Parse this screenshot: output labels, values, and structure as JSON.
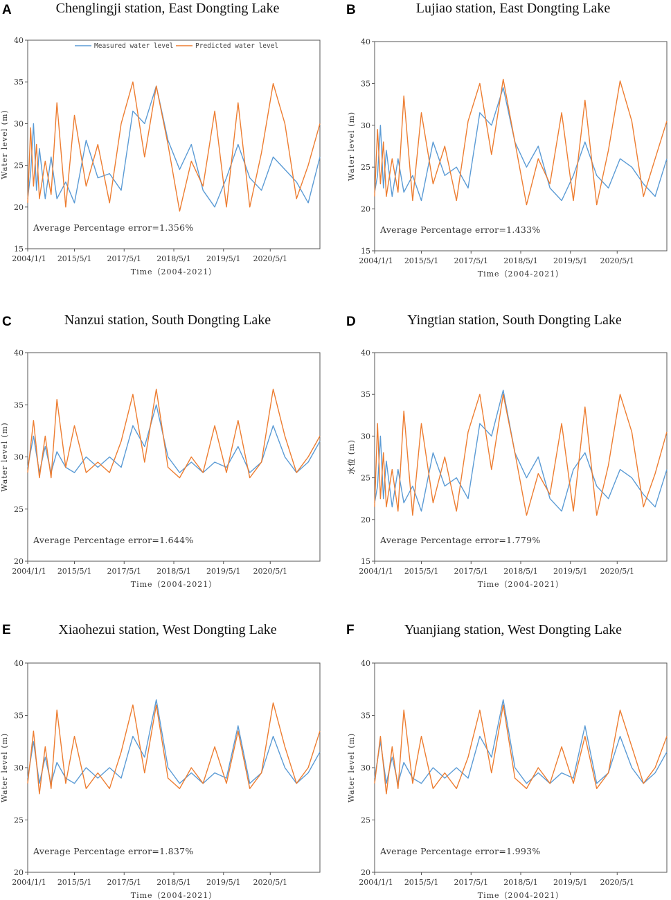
{
  "figure": {
    "legend": {
      "measured": "Measured water level",
      "predicted": "Predicted water level"
    }
  },
  "colors": {
    "measured": "#5b9bd5",
    "predicted": "#ed7d31",
    "axis": "#555555"
  },
  "chart_data": [
    {
      "type": "line",
      "letter": "A",
      "title": "Chenglingji station, East Dongting Lake",
      "ylabel": "Water level (m)",
      "xlabel": "Time（2004-2021）",
      "ylim": [
        15,
        40
      ],
      "yticks": [
        "15",
        "20",
        "25",
        "30",
        "35",
        "40"
      ],
      "xticks": [
        "2004/1/1",
        "2015/5/1",
        "2017/5/1",
        "2018/5/1",
        "2019/5/1",
        "2020/5/1"
      ],
      "annotation": "Average Percentage error=1.356%",
      "show_legend": true,
      "series": [
        {
          "name": "Measured water level",
          "x": [
            0,
            1,
            2,
            3,
            4,
            6,
            8,
            10,
            13,
            16,
            20,
            24,
            28,
            32,
            36,
            40,
            44,
            48,
            52,
            56,
            60,
            64,
            68,
            72,
            76,
            80,
            84,
            88,
            92,
            96,
            100
          ],
          "values": [
            21,
            24,
            30,
            22,
            27,
            21,
            26,
            21,
            23,
            20.5,
            28,
            23.5,
            24,
            22,
            31.5,
            30,
            34.5,
            28,
            24.5,
            27.5,
            22,
            20,
            23.5,
            27.5,
            23.5,
            22,
            26,
            24.5,
            23,
            20.5,
            26
          ]
        },
        {
          "name": "Predicted water level",
          "x": [
            0,
            1,
            2,
            3,
            4,
            6,
            8,
            10,
            13,
            16,
            20,
            24,
            28,
            32,
            36,
            40,
            44,
            48,
            52,
            56,
            60,
            64,
            68,
            72,
            76,
            80,
            84,
            88,
            92,
            96,
            100
          ],
          "values": [
            20.5,
            29.5,
            22.5,
            27.5,
            21,
            25.5,
            21.5,
            32.5,
            20,
            31,
            22.5,
            27.5,
            20.5,
            30,
            35,
            26,
            34.5,
            27.5,
            19.5,
            25.5,
            22.5,
            31.5,
            20,
            32.5,
            20,
            26.5,
            34.8,
            30,
            21,
            25,
            30
          ]
        }
      ]
    },
    {
      "type": "line",
      "letter": "B",
      "title": "Lujiao station, East Dongting Lake",
      "ylabel": "Water level (m)",
      "xlabel": "Time（2004-2021）",
      "ylim": [
        15,
        40
      ],
      "yticks": [
        "15",
        "20",
        "25",
        "30",
        "35",
        "40"
      ],
      "xticks": [
        "2004/1/1",
        "2015/5/1",
        "2017/5/1",
        "2018/5/1",
        "2019/5/1",
        "2020/5/1"
      ],
      "annotation": "Average Percentage error=1.433%",
      "show_legend": false,
      "series": [
        {
          "name": "Measured water level",
          "x": [
            0,
            1,
            2,
            3,
            4,
            6,
            8,
            10,
            13,
            16,
            20,
            24,
            28,
            32,
            36,
            40,
            44,
            48,
            52,
            56,
            60,
            64,
            68,
            72,
            76,
            80,
            84,
            88,
            92,
            96,
            100
          ],
          "values": [
            22,
            24,
            30,
            22.5,
            27,
            21.5,
            26,
            22,
            24,
            21,
            28,
            24,
            25,
            22.5,
            31.5,
            30,
            34.5,
            28,
            25,
            27.5,
            22.5,
            21,
            24,
            28,
            24,
            22.5,
            26,
            25,
            23,
            21.5,
            26
          ]
        },
        {
          "name": "Predicted water level",
          "x": [
            0,
            1,
            2,
            3,
            4,
            6,
            8,
            10,
            13,
            16,
            20,
            24,
            28,
            32,
            36,
            40,
            44,
            48,
            52,
            56,
            60,
            64,
            68,
            72,
            76,
            80,
            84,
            88,
            92,
            96,
            100
          ],
          "values": [
            21.5,
            29.5,
            23,
            28,
            21.5,
            26,
            22,
            33.5,
            21,
            31.5,
            23,
            27.5,
            21,
            30.5,
            35,
            26.5,
            35.5,
            28,
            20.5,
            26,
            23,
            31.5,
            21,
            33,
            20.5,
            27,
            35.3,
            30.5,
            21.5,
            26,
            30.5
          ]
        }
      ]
    },
    {
      "type": "line",
      "letter": "C",
      "title": "Nanzui station, South Dongting Lake",
      "ylabel": "Water level (m)",
      "xlabel": "Time（2004-2021）",
      "ylim": [
        20,
        40
      ],
      "yticks": [
        "20",
        "25",
        "30",
        "35",
        "40"
      ],
      "xticks": [
        "2004/1/1",
        "2015/5/1",
        "2017/5/1",
        "2018/5/1",
        "2019/5/1",
        "2020/5/1"
      ],
      "annotation": "Average Percentage error=1.644%",
      "show_legend": false,
      "series": [
        {
          "name": "Measured water level",
          "x": [
            0,
            2,
            4,
            6,
            8,
            10,
            13,
            16,
            20,
            24,
            28,
            32,
            36,
            40,
            44,
            48,
            52,
            56,
            60,
            64,
            68,
            72,
            76,
            80,
            84,
            88,
            92,
            96,
            100
          ],
          "values": [
            29,
            32,
            28.5,
            31,
            28.5,
            30.5,
            29,
            28.5,
            30,
            29,
            30,
            29,
            33,
            31,
            35,
            30,
            28.5,
            29.5,
            28.5,
            29.5,
            29,
            31,
            28.5,
            29.5,
            33,
            30,
            28.5,
            29.5,
            31.5
          ]
        },
        {
          "name": "Predicted water level",
          "x": [
            0,
            2,
            4,
            6,
            8,
            10,
            13,
            16,
            20,
            24,
            28,
            32,
            36,
            40,
            44,
            48,
            52,
            56,
            60,
            64,
            68,
            72,
            76,
            80,
            84,
            88,
            92,
            96,
            100
          ],
          "values": [
            28.5,
            33.5,
            28,
            32,
            28,
            35.5,
            29,
            33,
            28.5,
            29.5,
            28.5,
            31.5,
            36,
            29.5,
            36.5,
            29,
            28,
            30,
            28.5,
            33,
            28.5,
            33.5,
            28,
            29.5,
            36.5,
            32,
            28.5,
            30,
            32
          ]
        }
      ]
    },
    {
      "type": "line",
      "letter": "D",
      "title": "Yingtian station, South Dongting Lake",
      "ylabel": "水位 (m)",
      "xlabel": "Time（2004-2021）",
      "ylim": [
        15,
        40
      ],
      "yticks": [
        "15",
        "20",
        "25",
        "30",
        "35",
        "40"
      ],
      "xticks": [
        "2004/1/1",
        "2015/5/1",
        "2017/5/1",
        "2018/5/1",
        "2019/5/1",
        "2020/5/1"
      ],
      "annotation": "Average Percentage error=1.779%",
      "show_legend": false,
      "series": [
        {
          "name": "Measured water level",
          "x": [
            0,
            1,
            2,
            3,
            4,
            6,
            8,
            10,
            13,
            16,
            20,
            24,
            28,
            32,
            36,
            40,
            44,
            48,
            52,
            56,
            60,
            64,
            68,
            72,
            76,
            80,
            84,
            88,
            92,
            96,
            100
          ],
          "values": [
            22,
            24,
            30,
            22.5,
            27,
            21.5,
            26,
            22,
            24,
            21,
            28,
            24,
            25,
            22.5,
            31.5,
            30,
            35.5,
            28,
            25,
            27.5,
            22.5,
            21,
            26,
            28,
            24,
            22.5,
            26,
            25,
            23,
            21.5,
            26
          ]
        },
        {
          "name": "Predicted water level",
          "x": [
            0,
            1,
            2,
            3,
            4,
            6,
            8,
            10,
            13,
            16,
            20,
            24,
            28,
            32,
            36,
            40,
            44,
            48,
            52,
            56,
            60,
            64,
            68,
            72,
            76,
            80,
            84,
            88,
            92,
            96,
            100
          ],
          "values": [
            21.5,
            31.5,
            22.5,
            28,
            21.5,
            26,
            21,
            33,
            20.5,
            31.5,
            22,
            27.5,
            21,
            30.5,
            35,
            26,
            35,
            28,
            20.5,
            25.5,
            23,
            31.5,
            21,
            33.5,
            20.5,
            26.5,
            35,
            30.5,
            21.5,
            25.5,
            30.5
          ]
        }
      ]
    },
    {
      "type": "line",
      "letter": "E",
      "title": "Xiaohezui station, West Dongting Lake",
      "ylabel": "Water level (m)",
      "xlabel": "Time（2004-2021）",
      "ylim": [
        20,
        40
      ],
      "yticks": [
        "20",
        "25",
        "30",
        "35",
        "40"
      ],
      "xticks": [
        "2004/1/1",
        "2015/5/1",
        "2017/5/1",
        "2018/5/1",
        "2019/5/1",
        "2020/5/1"
      ],
      "annotation": "Average Percentage error=1.837%",
      "show_legend": false,
      "series": [
        {
          "name": "Measured water level",
          "x": [
            0,
            2,
            4,
            6,
            8,
            10,
            13,
            16,
            20,
            24,
            28,
            32,
            36,
            40,
            44,
            48,
            52,
            56,
            60,
            64,
            68,
            72,
            76,
            80,
            84,
            88,
            92,
            96,
            100
          ],
          "values": [
            29,
            32.5,
            28.5,
            31,
            28.5,
            30.5,
            29,
            28.5,
            30,
            29,
            30,
            29,
            33,
            31,
            36.5,
            30,
            28.5,
            29.5,
            28.5,
            29.5,
            29,
            34,
            28.5,
            29.5,
            33,
            30,
            28.5,
            29.5,
            31.5
          ]
        },
        {
          "name": "Predicted water level",
          "x": [
            0,
            2,
            4,
            6,
            8,
            10,
            13,
            16,
            20,
            24,
            28,
            32,
            36,
            40,
            44,
            48,
            52,
            56,
            60,
            64,
            68,
            72,
            76,
            80,
            84,
            88,
            92,
            96,
            100
          ],
          "values": [
            28.5,
            33.5,
            27.5,
            32,
            28,
            35.5,
            28.5,
            33,
            28,
            29.5,
            28,
            31.5,
            36,
            29.5,
            36,
            29,
            28,
            30,
            28.5,
            32,
            28.5,
            33.5,
            28,
            29.5,
            36.2,
            32,
            28.5,
            30,
            33.5
          ]
        }
      ]
    },
    {
      "type": "line",
      "letter": "F",
      "title": "Yuanjiang station, West Dongting Lake",
      "ylabel": "Water level (m)",
      "xlabel": "Time（2004-2021）",
      "ylim": [
        20,
        40
      ],
      "yticks": [
        "20",
        "25",
        "30",
        "35",
        "40"
      ],
      "xticks": [
        "2004/1/1",
        "2015/5/1",
        "2017/5/1",
        "2018/5/1",
        "2019/5/1",
        "2020/5/1"
      ],
      "annotation": "Average Percentage error=1.993%",
      "show_legend": false,
      "series": [
        {
          "name": "Measured water level",
          "x": [
            0,
            2,
            4,
            6,
            8,
            10,
            13,
            16,
            20,
            24,
            28,
            32,
            36,
            40,
            44,
            48,
            52,
            56,
            60,
            64,
            68,
            72,
            76,
            80,
            84,
            88,
            92,
            96,
            100
          ],
          "values": [
            29,
            32.5,
            28.5,
            31,
            28.5,
            30.5,
            29,
            28.5,
            30,
            29,
            30,
            29,
            33,
            31,
            36.5,
            30,
            28.5,
            29.5,
            28.5,
            29.5,
            29,
            34,
            28.5,
            29.5,
            33,
            30,
            28.5,
            29.5,
            31.5
          ]
        },
        {
          "name": "Predicted water level",
          "x": [
            0,
            2,
            4,
            6,
            8,
            10,
            13,
            16,
            20,
            24,
            28,
            32,
            36,
            40,
            44,
            48,
            52,
            56,
            60,
            64,
            68,
            72,
            76,
            80,
            84,
            88,
            92,
            96,
            100
          ],
          "values": [
            28.5,
            33,
            27.5,
            32,
            28,
            35.5,
            28.5,
            33,
            28,
            29.5,
            28,
            31,
            35.5,
            29.5,
            36,
            29,
            28,
            30,
            28.5,
            32,
            28.5,
            33,
            28,
            29.5,
            35.5,
            32,
            28.5,
            30,
            33
          ]
        }
      ]
    }
  ]
}
